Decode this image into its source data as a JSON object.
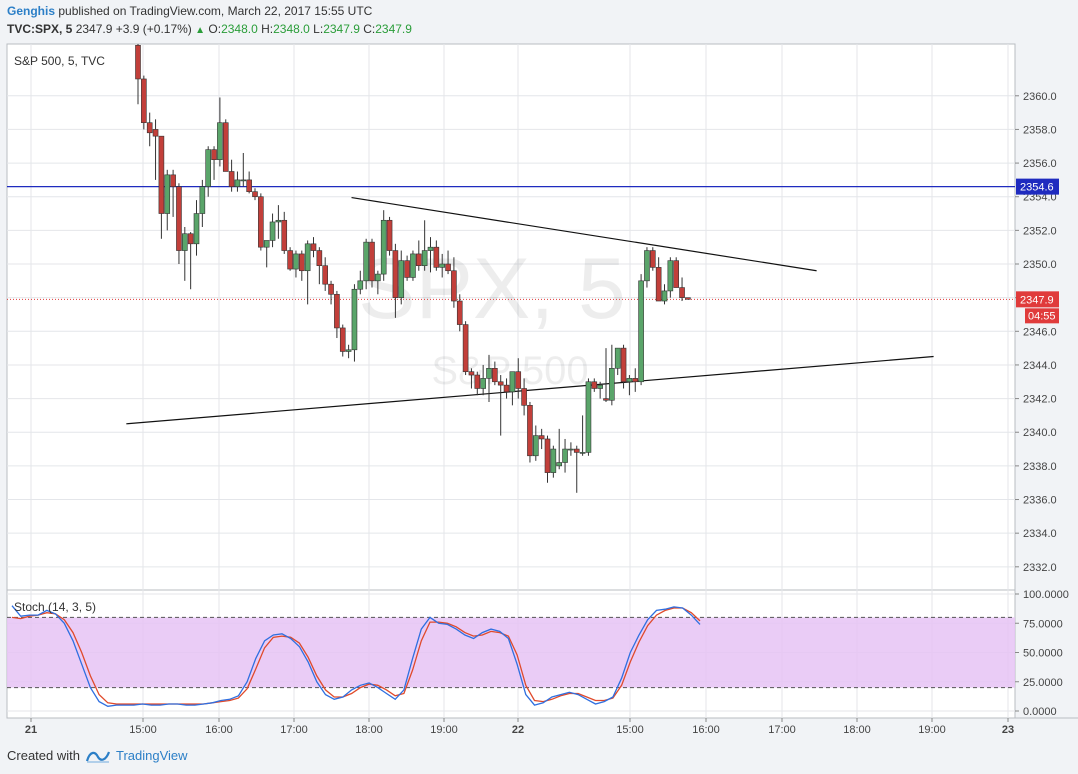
{
  "header": {
    "author": "Genghis",
    "published": " published on TradingView.com, March 22, 2017 15:55 UTC",
    "symbol": "TVC:SPX, 5",
    "last": "2347.9",
    "change": "+3.9 (+0.17%)",
    "o_label": "O:",
    "o_value": "2348.0",
    "h_label": "H:",
    "h_value": "2348.0",
    "l_label": "L:",
    "l_value": "2347.9",
    "c_label": "C:",
    "c_value": "2347.9"
  },
  "footer": {
    "created_with": "Created with",
    "brand": "TradingView"
  },
  "chart_data": {
    "type": "candlestick",
    "pane_title": "S&P 500, 5, TVC",
    "watermark_main": "SPX, 5",
    "watermark_sub": "S&P 500",
    "y_ticks": [
      "2360.0",
      "2358.0",
      "2356.0",
      "2354.0",
      "2352.0",
      "2350.0",
      "2348.0",
      "2346.0",
      "2344.0",
      "2342.0",
      "2340.0",
      "2338.0",
      "2336.0",
      "2334.0",
      "2332.0"
    ],
    "ylim": [
      2330.8,
      2362.9
    ],
    "x_ticks": [
      "21",
      "15:00",
      "16:00",
      "17:00",
      "18:00",
      "19:00",
      "22",
      "15:00",
      "16:00",
      "17:00",
      "18:00",
      "19:00",
      "23"
    ],
    "horizontal_level": {
      "value": 2354.6,
      "label": "2354.6",
      "color": "#1f2bbf"
    },
    "price_tag": {
      "value": 2347.9,
      "label": "2347.9",
      "countdown": "04:55",
      "color": "#e03b3b"
    },
    "colors": {
      "up": "#5aa56a",
      "down": "#c23f3a",
      "level": "#1f2bbf",
      "trendline": "#111111",
      "price_line": "#e03b3b"
    },
    "candles": [
      {
        "o": 2363.0,
        "h": 2363.5,
        "l": 2359.5,
        "c": 2361.0
      },
      {
        "o": 2361.0,
        "h": 2361.2,
        "l": 2358.0,
        "c": 2358.4
      },
      {
        "o": 2358.4,
        "h": 2359.0,
        "l": 2357.0,
        "c": 2357.8
      },
      {
        "o": 2358.0,
        "h": 2358.6,
        "l": 2355.0,
        "c": 2357.6
      },
      {
        "o": 2357.6,
        "h": 2357.6,
        "l": 2351.5,
        "c": 2353.0
      },
      {
        "o": 2353.0,
        "h": 2355.6,
        "l": 2352.0,
        "c": 2355.3
      },
      {
        "o": 2355.3,
        "h": 2355.6,
        "l": 2352.8,
        "c": 2354.6
      },
      {
        "o": 2354.6,
        "h": 2354.8,
        "l": 2350.0,
        "c": 2350.8
      },
      {
        "o": 2350.8,
        "h": 2352.2,
        "l": 2349.0,
        "c": 2351.8
      },
      {
        "o": 2351.8,
        "h": 2351.9,
        "l": 2348.5,
        "c": 2351.2
      },
      {
        "o": 2351.2,
        "h": 2353.8,
        "l": 2350.5,
        "c": 2353.0
      },
      {
        "o": 2353.0,
        "h": 2355.0,
        "l": 2352.2,
        "c": 2354.6
      },
      {
        "o": 2354.6,
        "h": 2357.0,
        "l": 2354.0,
        "c": 2356.8
      },
      {
        "o": 2356.8,
        "h": 2357.0,
        "l": 2355.0,
        "c": 2356.2
      },
      {
        "o": 2356.2,
        "h": 2359.9,
        "l": 2355.8,
        "c": 2358.4
      },
      {
        "o": 2358.4,
        "h": 2358.6,
        "l": 2355.5,
        "c": 2355.5
      },
      {
        "o": 2355.5,
        "h": 2356.2,
        "l": 2354.3,
        "c": 2354.6
      },
      {
        "o": 2354.6,
        "h": 2355.5,
        "l": 2354.3,
        "c": 2355.0
      },
      {
        "o": 2355.0,
        "h": 2356.6,
        "l": 2354.6,
        "c": 2355.0
      },
      {
        "o": 2355.0,
        "h": 2355.5,
        "l": 2354.2,
        "c": 2354.3
      },
      {
        "o": 2354.3,
        "h": 2354.5,
        "l": 2353.8,
        "c": 2354.0
      },
      {
        "o": 2354.0,
        "h": 2354.2,
        "l": 2350.8,
        "c": 2351.0
      },
      {
        "o": 2351.0,
        "h": 2351.3,
        "l": 2349.8,
        "c": 2351.4
      },
      {
        "o": 2351.4,
        "h": 2353.0,
        "l": 2351.0,
        "c": 2352.5
      },
      {
        "o": 2352.5,
        "h": 2353.5,
        "l": 2351.5,
        "c": 2352.6
      },
      {
        "o": 2352.6,
        "h": 2353.1,
        "l": 2350.6,
        "c": 2350.8
      },
      {
        "o": 2350.8,
        "h": 2351.0,
        "l": 2349.6,
        "c": 2349.7
      },
      {
        "o": 2349.7,
        "h": 2350.8,
        "l": 2349.2,
        "c": 2350.6
      },
      {
        "o": 2350.6,
        "h": 2350.8,
        "l": 2349.0,
        "c": 2349.6
      },
      {
        "o": 2349.6,
        "h": 2351.4,
        "l": 2347.6,
        "c": 2351.2
      },
      {
        "o": 2351.2,
        "h": 2351.6,
        "l": 2350.4,
        "c": 2350.8
      },
      {
        "o": 2350.8,
        "h": 2351.0,
        "l": 2348.8,
        "c": 2349.9
      },
      {
        "o": 2349.9,
        "h": 2350.4,
        "l": 2348.4,
        "c": 2348.8
      },
      {
        "o": 2348.8,
        "h": 2349.0,
        "l": 2347.6,
        "c": 2348.2
      },
      {
        "o": 2348.2,
        "h": 2348.4,
        "l": 2345.6,
        "c": 2346.2
      },
      {
        "o": 2346.2,
        "h": 2346.4,
        "l": 2344.5,
        "c": 2344.8
      },
      {
        "o": 2344.8,
        "h": 2345.2,
        "l": 2344.4,
        "c": 2344.9
      },
      {
        "o": 2344.9,
        "h": 2348.8,
        "l": 2344.2,
        "c": 2348.5
      },
      {
        "o": 2348.5,
        "h": 2349.6,
        "l": 2348.2,
        "c": 2349.0
      },
      {
        "o": 2349.0,
        "h": 2351.5,
        "l": 2348.5,
        "c": 2351.3
      },
      {
        "o": 2351.3,
        "h": 2351.5,
        "l": 2348.6,
        "c": 2349.0
      },
      {
        "o": 2349.0,
        "h": 2349.6,
        "l": 2348.2,
        "c": 2349.4
      },
      {
        "o": 2349.4,
        "h": 2353.2,
        "l": 2349.0,
        "c": 2352.6
      },
      {
        "o": 2352.6,
        "h": 2352.8,
        "l": 2350.5,
        "c": 2350.8
      },
      {
        "o": 2350.8,
        "h": 2351.2,
        "l": 2346.8,
        "c": 2348.0
      },
      {
        "o": 2348.0,
        "h": 2350.8,
        "l": 2347.6,
        "c": 2350.2
      },
      {
        "o": 2350.2,
        "h": 2350.5,
        "l": 2349.0,
        "c": 2349.2
      },
      {
        "o": 2349.2,
        "h": 2350.8,
        "l": 2349.0,
        "c": 2350.6
      },
      {
        "o": 2350.6,
        "h": 2351.4,
        "l": 2349.6,
        "c": 2349.9
      },
      {
        "o": 2349.9,
        "h": 2352.6,
        "l": 2349.6,
        "c": 2350.8
      },
      {
        "o": 2350.8,
        "h": 2351.6,
        "l": 2349.5,
        "c": 2351.0
      },
      {
        "o": 2351.0,
        "h": 2351.4,
        "l": 2349.6,
        "c": 2349.8
      },
      {
        "o": 2349.8,
        "h": 2350.6,
        "l": 2349.2,
        "c": 2350.0
      },
      {
        "o": 2350.0,
        "h": 2350.8,
        "l": 2349.4,
        "c": 2349.6
      },
      {
        "o": 2349.6,
        "h": 2350.4,
        "l": 2347.4,
        "c": 2347.8
      },
      {
        "o": 2347.8,
        "h": 2348.2,
        "l": 2346.0,
        "c": 2346.4
      },
      {
        "o": 2346.4,
        "h": 2346.6,
        "l": 2343.4,
        "c": 2343.6
      },
      {
        "o": 2343.6,
        "h": 2343.8,
        "l": 2342.6,
        "c": 2343.4
      },
      {
        "o": 2343.4,
        "h": 2343.6,
        "l": 2342.2,
        "c": 2342.6
      },
      {
        "o": 2342.6,
        "h": 2344.0,
        "l": 2342.2,
        "c": 2343.2
      },
      {
        "o": 2343.2,
        "h": 2344.6,
        "l": 2341.8,
        "c": 2343.8
      },
      {
        "o": 2343.8,
        "h": 2344.2,
        "l": 2342.8,
        "c": 2343.0
      },
      {
        "o": 2343.0,
        "h": 2343.4,
        "l": 2339.8,
        "c": 2342.8
      },
      {
        "o": 2342.8,
        "h": 2343.2,
        "l": 2342.0,
        "c": 2342.4
      },
      {
        "o": 2342.4,
        "h": 2343.4,
        "l": 2341.6,
        "c": 2343.6
      },
      {
        "o": 2343.6,
        "h": 2344.4,
        "l": 2342.0,
        "c": 2342.6
      },
      {
        "o": 2342.6,
        "h": 2343.2,
        "l": 2341.0,
        "c": 2341.6
      },
      {
        "o": 2341.6,
        "h": 2341.8,
        "l": 2338.2,
        "c": 2338.6
      },
      {
        "o": 2338.6,
        "h": 2340.4,
        "l": 2338.3,
        "c": 2339.8
      },
      {
        "o": 2339.8,
        "h": 2340.2,
        "l": 2339.0,
        "c": 2339.6
      },
      {
        "o": 2339.6,
        "h": 2339.8,
        "l": 2337.0,
        "c": 2337.6
      },
      {
        "o": 2337.6,
        "h": 2339.2,
        "l": 2337.3,
        "c": 2339.0
      },
      {
        "o": 2338.0,
        "h": 2340.2,
        "l": 2337.8,
        "c": 2338.2
      },
      {
        "o": 2338.2,
        "h": 2339.6,
        "l": 2337.6,
        "c": 2339.0
      },
      {
        "o": 2339.0,
        "h": 2339.4,
        "l": 2338.6,
        "c": 2339.0
      },
      {
        "o": 2339.0,
        "h": 2339.2,
        "l": 2336.4,
        "c": 2338.8
      },
      {
        "o": 2338.8,
        "h": 2341.0,
        "l": 2338.6,
        "c": 2338.8
      },
      {
        "o": 2338.8,
        "h": 2343.2,
        "l": 2338.6,
        "c": 2343.0
      },
      {
        "o": 2343.0,
        "h": 2343.2,
        "l": 2342.4,
        "c": 2342.6
      },
      {
        "o": 2342.6,
        "h": 2343.0,
        "l": 2342.0,
        "c": 2342.8
      },
      {
        "o": 2342.0,
        "h": 2345.0,
        "l": 2341.8,
        "c": 2341.9
      },
      {
        "o": 2341.9,
        "h": 2345.2,
        "l": 2341.6,
        "c": 2343.8
      },
      {
        "o": 2343.8,
        "h": 2345.0,
        "l": 2343.4,
        "c": 2345.0
      },
      {
        "o": 2345.0,
        "h": 2345.2,
        "l": 2342.6,
        "c": 2343.0
      },
      {
        "o": 2343.0,
        "h": 2343.4,
        "l": 2342.2,
        "c": 2343.2
      },
      {
        "o": 2343.2,
        "h": 2343.8,
        "l": 2342.4,
        "c": 2343.0
      },
      {
        "o": 2343.0,
        "h": 2349.4,
        "l": 2342.8,
        "c": 2349.0
      },
      {
        "o": 2349.0,
        "h": 2351.0,
        "l": 2348.6,
        "c": 2350.8
      },
      {
        "o": 2350.8,
        "h": 2351.0,
        "l": 2349.6,
        "c": 2349.8
      },
      {
        "o": 2349.8,
        "h": 2350.4,
        "l": 2347.8,
        "c": 2347.8
      },
      {
        "o": 2347.8,
        "h": 2348.8,
        "l": 2347.6,
        "c": 2348.4
      },
      {
        "o": 2348.4,
        "h": 2350.4,
        "l": 2348.0,
        "c": 2350.2
      },
      {
        "o": 2350.2,
        "h": 2350.4,
        "l": 2348.6,
        "c": 2348.6
      },
      {
        "o": 2348.6,
        "h": 2349.2,
        "l": 2347.8,
        "c": 2348.0
      },
      {
        "o": 2348.0,
        "h": 2348.0,
        "l": 2347.9,
        "c": 2347.9
      }
    ],
    "trendlines": [
      {
        "x1_index": 36.5,
        "y1": 2353.95,
        "x2_index": 116,
        "y2": 2349.6
      },
      {
        "x1_index": -2,
        "y1": 2340.5,
        "x2_index": 136,
        "y2": 2344.5
      }
    ],
    "stoch": {
      "title": "Stoch (14, 3, 5)",
      "y_ticks": [
        "100.0000",
        "75.0000",
        "50.0000",
        "25.0000",
        "0.0000"
      ],
      "upper_band": 80,
      "lower_band": 20,
      "colors": {
        "k": "#2f6fe0",
        "d": "#e04a2b",
        "band": "#e6c3f5"
      },
      "k": [
        90,
        81,
        82,
        82,
        86,
        83,
        75,
        60,
        40,
        20,
        8,
        4,
        5,
        5,
        5,
        6,
        5,
        5,
        6,
        6,
        5,
        5,
        6,
        7,
        9,
        10,
        13,
        25,
        45,
        60,
        65,
        66,
        62,
        55,
        42,
        25,
        14,
        10,
        12,
        18,
        22,
        24,
        20,
        15,
        10,
        18,
        45,
        70,
        80,
        75,
        74,
        70,
        65,
        62,
        67,
        70,
        68,
        62,
        40,
        14,
        5,
        7,
        12,
        14,
        16,
        14,
        10,
        6,
        8,
        12,
        28,
        50,
        65,
        78,
        86,
        87,
        89,
        88,
        82,
        74
      ],
      "d": [
        80,
        79,
        81,
        82,
        84,
        83,
        78,
        67,
        50,
        30,
        14,
        7,
        6,
        6,
        6,
        6,
        6,
        6,
        6,
        6,
        6,
        6,
        6,
        7,
        8,
        9,
        11,
        19,
        36,
        54,
        63,
        64,
        63,
        58,
        46,
        30,
        18,
        12,
        12,
        15,
        20,
        23,
        22,
        18,
        13,
        15,
        35,
        60,
        76,
        76,
        75,
        72,
        67,
        64,
        65,
        68,
        67,
        64,
        48,
        22,
        9,
        8,
        10,
        13,
        15,
        15,
        12,
        9,
        9,
        11,
        22,
        42,
        59,
        73,
        82,
        86,
        88,
        88,
        84,
        77
      ]
    }
  }
}
